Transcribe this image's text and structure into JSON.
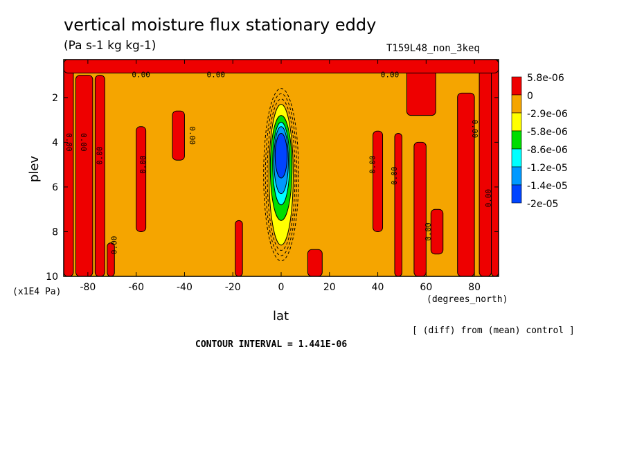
{
  "chart_data": {
    "type": "heatmap",
    "title": "vertical moisture flux stationary eddy",
    "units": "(Pa s-1 kg kg-1)",
    "run_label": "T159L48_non_3keq",
    "xlabel": "lat",
    "ylabel": "plev",
    "x_unit_label": "(degrees_north)",
    "y_unit_label": "(x1E4 Pa)",
    "x_ticks": [
      -80,
      -60,
      -40,
      -20,
      0,
      20,
      40,
      60,
      80
    ],
    "x_tick_labels": [
      "-80",
      "-60",
      "-40",
      "-20",
      "0",
      "20",
      "40",
      "60",
      "80"
    ],
    "y_ticks": [
      2,
      4,
      6,
      8,
      10
    ],
    "xlim": [
      -90,
      90
    ],
    "ylim": [
      10,
      0.3
    ],
    "y_reversed": true,
    "legend_placement": "right",
    "colorbar": [
      {
        "label": "5.8e-06",
        "color": "#ee0000"
      },
      {
        "label": "0",
        "color": "#f5a500"
      },
      {
        "label": "-2.9e-06",
        "color": "#ffff00"
      },
      {
        "label": "-5.8e-06",
        "color": "#00dd00"
      },
      {
        "label": "-8.6e-06",
        "color": "#00ffff"
      },
      {
        "label": "-1.2e-05",
        "color": "#0099ff"
      },
      {
        "label": "-1.4e-05",
        "color": "#0044ff"
      },
      {
        "label": "-2e-05",
        "color": ""
      }
    ],
    "background_color": "#f5a500",
    "positive_color": "#ee0000",
    "positive_regions": [
      {
        "x": [
          -90,
          -86
        ],
        "y": [
          0.3,
          10
        ]
      },
      {
        "x": [
          -85,
          -78
        ],
        "y": [
          1.0,
          10
        ]
      },
      {
        "x": [
          -77,
          -73
        ],
        "y": [
          1.0,
          10
        ]
      },
      {
        "x": [
          -72,
          -69
        ],
        "y": [
          8.5,
          10
        ]
      },
      {
        "x": [
          -60,
          -56
        ],
        "y": [
          3.3,
          8.0
        ]
      },
      {
        "x": [
          -45,
          -40
        ],
        "y": [
          2.6,
          4.8
        ]
      },
      {
        "x": [
          -19,
          -16
        ],
        "y": [
          7.5,
          10
        ]
      },
      {
        "x": [
          11,
          17
        ],
        "y": [
          8.8,
          10
        ]
      },
      {
        "x": [
          38,
          42
        ],
        "y": [
          3.5,
          8.0
        ]
      },
      {
        "x": [
          47,
          50
        ],
        "y": [
          3.6,
          10
        ]
      },
      {
        "x": [
          52,
          64
        ],
        "y": [
          0.5,
          2.8
        ]
      },
      {
        "x": [
          55,
          60
        ],
        "y": [
          4.0,
          10
        ]
      },
      {
        "x": [
          62,
          67
        ],
        "y": [
          7.0,
          9.0
        ]
      },
      {
        "x": [
          73,
          80
        ],
        "y": [
          1.8,
          10
        ]
      },
      {
        "x": [
          82,
          87
        ],
        "y": [
          0.7,
          10
        ]
      },
      {
        "x": [
          87,
          90
        ],
        "y": [
          0.3,
          10
        ]
      },
      {
        "x": [
          -90,
          90
        ],
        "y": [
          0.3,
          0.9
        ]
      }
    ],
    "negative_core": [
      {
        "x": [
          -5,
          5
        ],
        "y": [
          2.3,
          8.6
        ],
        "color": "#ffff00"
      },
      {
        "x": [
          -4.5,
          4.5
        ],
        "y": [
          2.8,
          7.5
        ],
        "color": "#00dd00"
      },
      {
        "x": [
          -3.5,
          3.5
        ],
        "y": [
          3.1,
          6.8
        ],
        "color": "#00ffff"
      },
      {
        "x": [
          -3,
          3
        ],
        "y": [
          3.3,
          6.3
        ],
        "color": "#0099ff"
      },
      {
        "x": [
          -2.5,
          2.5
        ],
        "y": [
          3.6,
          5.6
        ],
        "color": "#0044ff"
      }
    ],
    "contour_labels": [
      {
        "text": "0.00",
        "x": -58,
        "y": 1.0,
        "rot": 0
      },
      {
        "text": "0.00",
        "x": -27,
        "y": 1.0,
        "rot": 0
      },
      {
        "text": "0.00",
        "x": 45,
        "y": 1.0,
        "rot": 0
      },
      {
        "text": "0.00",
        "x": -88,
        "y": 4.0,
        "rot": 90
      },
      {
        "text": "0.00",
        "x": -82,
        "y": 4.0,
        "rot": 90
      },
      {
        "text": "0.00",
        "x": -75,
        "y": 4.6,
        "rot": -90
      },
      {
        "text": "0.00",
        "x": -57,
        "y": 5.0,
        "rot": -90
      },
      {
        "text": "0.00",
        "x": -37,
        "y": 3.7,
        "rot": 90
      },
      {
        "text": "0.00",
        "x": -69,
        "y": 8.6,
        "rot": -90
      },
      {
        "text": "0.00",
        "x": 38,
        "y": 5.0,
        "rot": -90
      },
      {
        "text": "0.00",
        "x": 47,
        "y": 5.5,
        "rot": -90
      },
      {
        "text": "0.00",
        "x": 61,
        "y": 8.0,
        "rot": -90
      },
      {
        "text": "0.00",
        "x": 80,
        "y": 3.4,
        "rot": 90
      },
      {
        "text": "0.00",
        "x": 86,
        "y": 6.5,
        "rot": -90
      }
    ],
    "footer": "[ (diff) from (mean) control ]",
    "contour_interval": "CONTOUR INTERVAL = 1.441E-06"
  }
}
